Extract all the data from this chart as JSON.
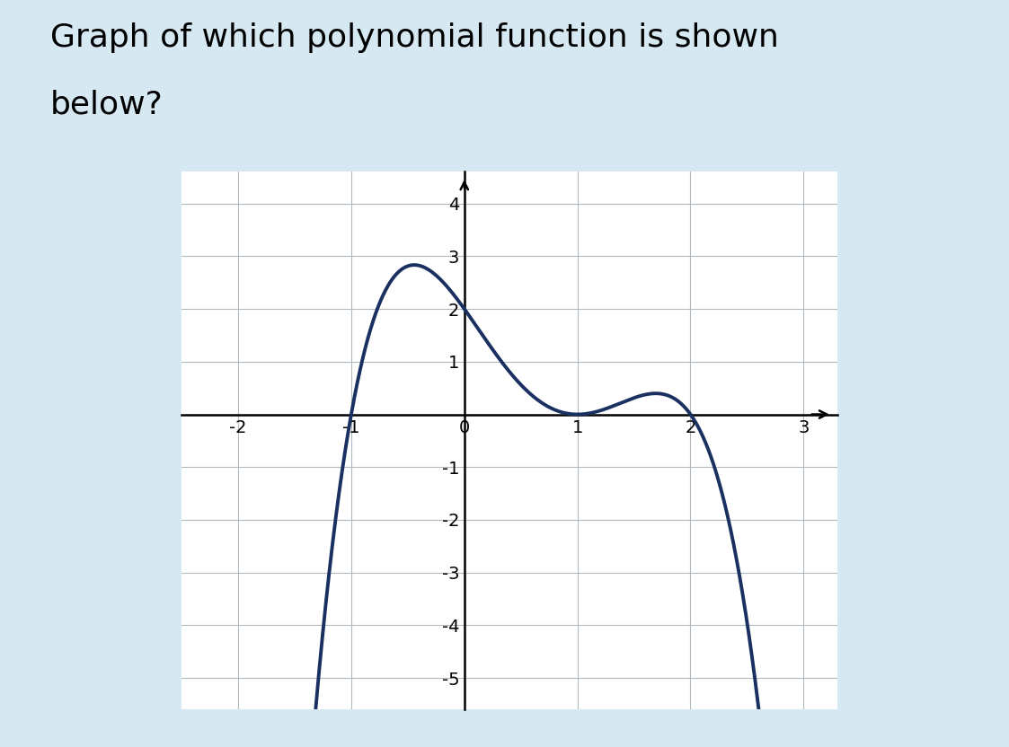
{
  "title_line1": "Graph of which polynomial function is shown",
  "title_line2": "below?",
  "title_fontsize": 26,
  "background_color": "#d6e8f2",
  "plot_background": "#ffffff",
  "plot_border_color": "#cccccc",
  "curve_color": "#1a3060",
  "curve_linewidth": 2.8,
  "xlim": [
    -2.5,
    3.3
  ],
  "ylim": [
    -5.6,
    4.6
  ],
  "xticks": [
    -2,
    -1,
    0,
    1,
    2,
    3
  ],
  "yticks": [
    -5,
    -4,
    -3,
    -2,
    -1,
    0,
    1,
    2,
    3,
    4
  ],
  "grid_color": "#b0b8c0",
  "grid_linewidth": 0.8,
  "axis_linewidth": 1.8,
  "tick_fontsize": 14
}
